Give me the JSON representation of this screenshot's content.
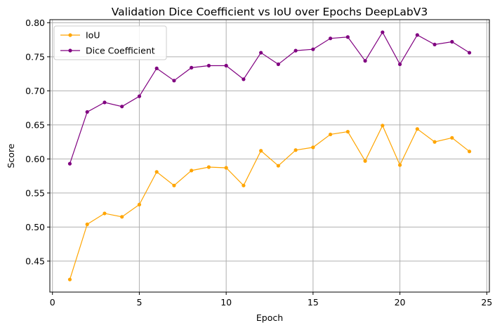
{
  "chart_data": {
    "type": "line",
    "title": "Validation Dice Coefficient vs IoU over Epochs DeepLabV3",
    "xlabel": "Epoch",
    "ylabel": "Score",
    "xlim": [
      -0.15,
      25.15
    ],
    "ylim": [
      0.4045,
      0.8045
    ],
    "xticks": [
      0,
      5,
      10,
      15,
      20,
      25
    ],
    "yticks": [
      0.45,
      0.5,
      0.55,
      0.6,
      0.65,
      0.7,
      0.75,
      0.8
    ],
    "grid": true,
    "legend_position": "top-left",
    "x": [
      1,
      2,
      3,
      4,
      5,
      6,
      7,
      8,
      9,
      10,
      11,
      12,
      13,
      14,
      15,
      16,
      17,
      18,
      19,
      20,
      21,
      22,
      23,
      24
    ],
    "series": [
      {
        "name": "IoU",
        "color": "#FFA500",
        "values": [
          0.423,
          0.504,
          0.52,
          0.515,
          0.533,
          0.581,
          0.561,
          0.583,
          0.588,
          0.587,
          0.561,
          0.612,
          0.59,
          0.613,
          0.617,
          0.636,
          0.64,
          0.597,
          0.649,
          0.591,
          0.644,
          0.625,
          0.631,
          0.611
        ]
      },
      {
        "name": "Dice Coefficient",
        "color": "#800080",
        "values": [
          0.593,
          0.669,
          0.683,
          0.677,
          0.692,
          0.733,
          0.715,
          0.734,
          0.737,
          0.737,
          0.717,
          0.756,
          0.739,
          0.759,
          0.761,
          0.777,
          0.779,
          0.744,
          0.786,
          0.739,
          0.782,
          0.768,
          0.772,
          0.756
        ]
      }
    ]
  }
}
